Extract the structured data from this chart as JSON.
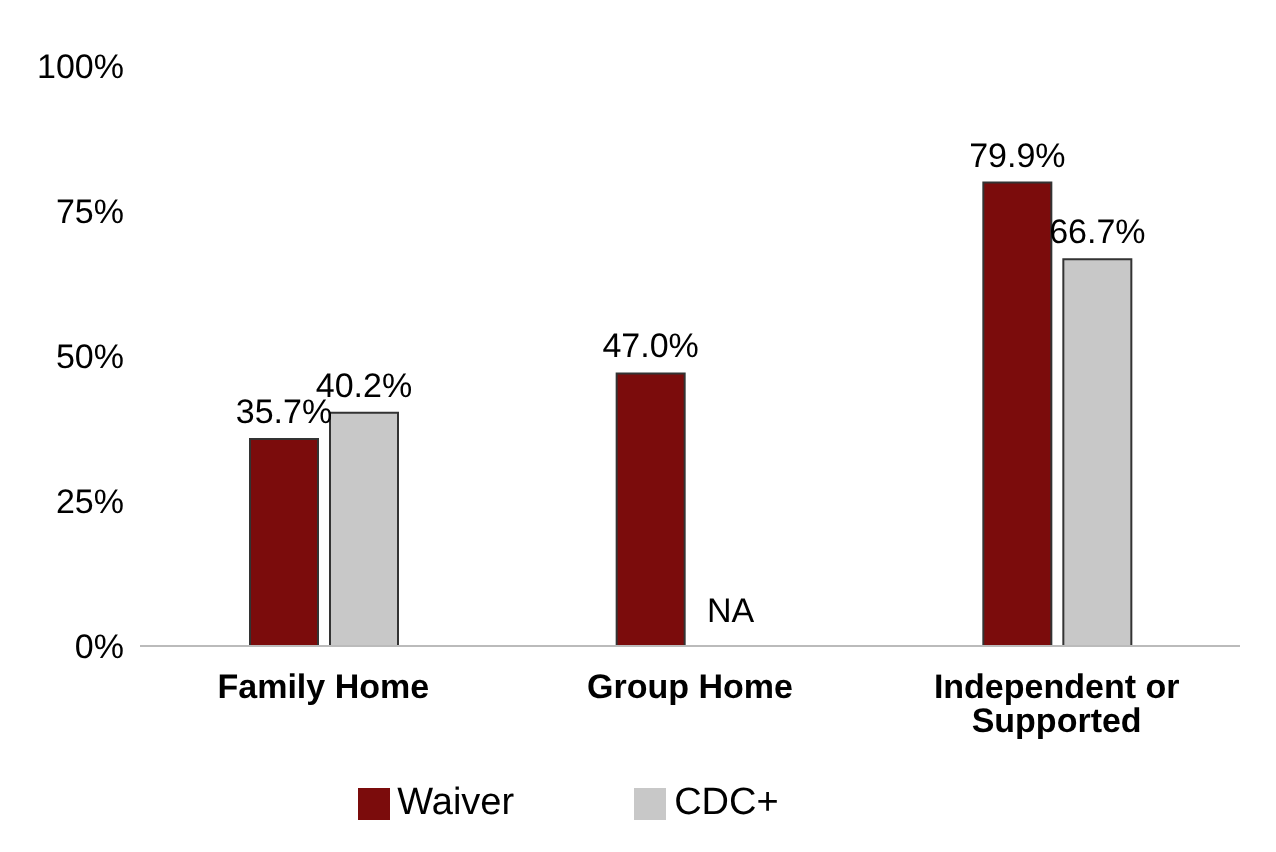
{
  "chart_data": {
    "type": "bar",
    "categories": [
      "Family Home",
      "Group Home",
      "Independent or Supported"
    ],
    "series": [
      {
        "name": "Waiver",
        "color": "#7b0c0c",
        "values": [
          35.7,
          47.0,
          79.9
        ],
        "value_labels": [
          "35.7%",
          "47.0%",
          "79.9%"
        ]
      },
      {
        "name": "CDC+",
        "color": "#c8c8c8",
        "values": [
          40.2,
          null,
          66.7
        ],
        "value_labels": [
          "40.2%",
          "NA",
          "66.7%"
        ]
      }
    ],
    "ylim": [
      0,
      100
    ],
    "yticks": [
      {
        "value": 0,
        "label": "0%"
      },
      {
        "value": 25,
        "label": "25%"
      },
      {
        "value": 50,
        "label": "50%"
      },
      {
        "value": 75,
        "label": "75%"
      },
      {
        "value": 100,
        "label": "100%"
      }
    ],
    "grid": false,
    "legend": "bottom"
  }
}
